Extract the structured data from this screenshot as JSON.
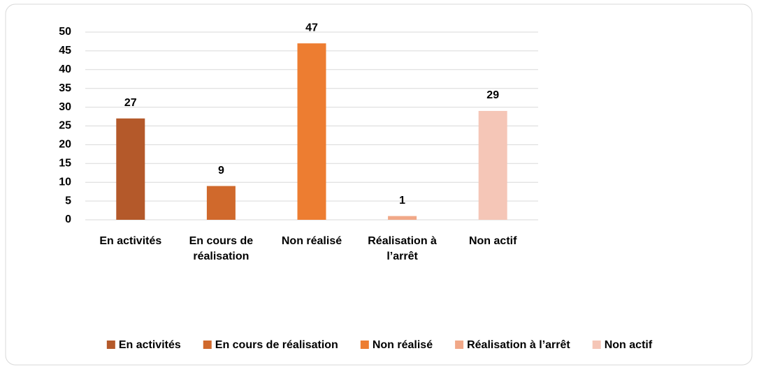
{
  "chart_data": {
    "type": "bar",
    "categories": [
      "En activités",
      "En cours de réalisation",
      "Non réalisé",
      "Réalisation à l’arrêt",
      "Non actif"
    ],
    "values": [
      27,
      9,
      47,
      1,
      29
    ],
    "colors": [
      "#b4592a",
      "#d0692c",
      "#ed7d31",
      "#f1a888",
      "#f5c6b7"
    ],
    "ylim": [
      0,
      50
    ],
    "yticks": [
      0,
      5,
      10,
      15,
      20,
      25,
      30,
      35,
      40,
      45,
      50
    ],
    "grid": true,
    "legend": "bottom"
  }
}
